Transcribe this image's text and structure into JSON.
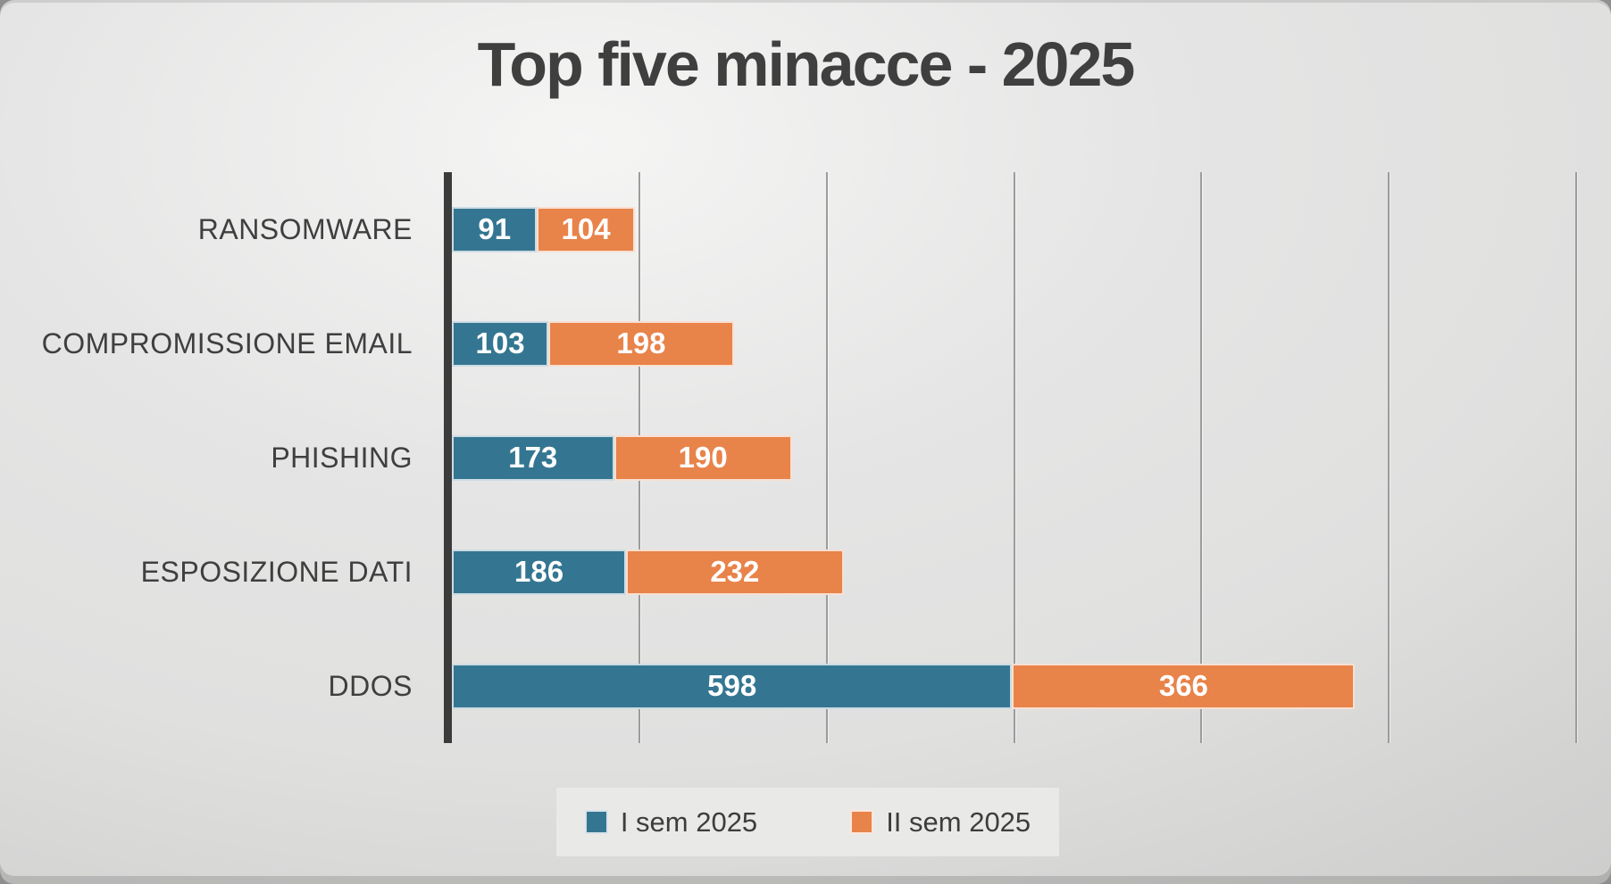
{
  "title": "Top five minacce - 2025",
  "colors": {
    "series_1": "#347691",
    "series_2": "#e8834a",
    "text": "#3f3f3f",
    "axis": "#3b3b3b",
    "gridline": "#9c9c9c",
    "bar_value_text": "#ffffff",
    "legend_background": "#e9e9e8"
  },
  "chart_data": {
    "type": "bar",
    "orientation": "horizontal",
    "stacked": true,
    "title": "Top five minacce - 2025",
    "xlabel": "",
    "ylabel": "",
    "categories": [
      "RANSOMWARE",
      "COMPROMISSIONE EMAIL",
      "PHISHING",
      "ESPOSIZIONE DATI",
      "DDOS"
    ],
    "series": [
      {
        "name": "I sem 2025",
        "color": "#347691",
        "values": [
          91,
          103,
          173,
          186,
          598
        ]
      },
      {
        "name": "II sem 2025",
        "color": "#e8834a",
        "values": [
          104,
          198,
          190,
          232,
          366
        ]
      }
    ],
    "totals": [
      195,
      301,
      363,
      418,
      964
    ],
    "xlim": [
      0,
      1200
    ],
    "gridline_step": 200,
    "grid": "vertical",
    "axis_tick_labels_visible": false,
    "data_labels": "inside-center",
    "legend_position": "bottom"
  },
  "legend": {
    "items": [
      {
        "label": "I sem 2025",
        "color": "#347691"
      },
      {
        "label": "II sem 2025",
        "color": "#e8834a"
      }
    ]
  }
}
